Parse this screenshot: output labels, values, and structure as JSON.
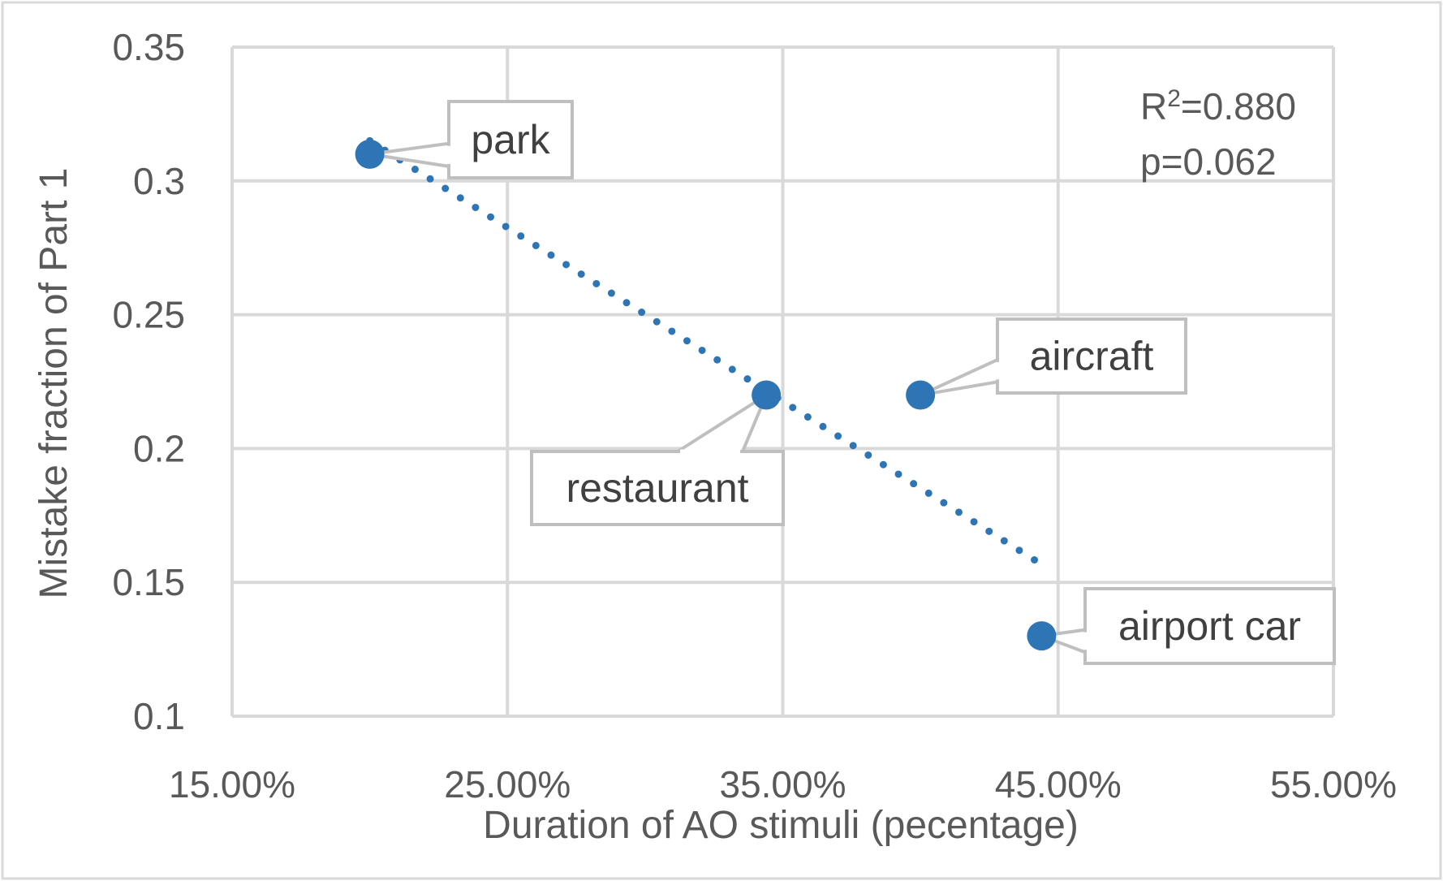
{
  "chart_data": {
    "type": "scatter",
    "title": "",
    "xlabel": "Duration of AO stimuli (pecentage)",
    "ylabel": "Mistake fraction of Part 1",
    "xlim": [
      0.15,
      0.55
    ],
    "ylim": [
      0.1,
      0.35
    ],
    "x_ticks": [
      "15.00%",
      "25.00%",
      "35.00%",
      "45.00%",
      "55.00%"
    ],
    "y_ticks": [
      "0.35",
      "0.3",
      "0.25",
      "0.2",
      "0.15",
      "0.1"
    ],
    "grid": true,
    "points": [
      {
        "label": "park",
        "x": 0.2,
        "y": 0.31
      },
      {
        "label": "restaurant",
        "x": 0.344,
        "y": 0.22
      },
      {
        "label": "aircraft",
        "x": 0.4,
        "y": 0.22
      },
      {
        "label": "airport car",
        "x": 0.444,
        "y": 0.13
      }
    ],
    "trendline": {
      "style": "dotted",
      "x": [
        0.2,
        0.442
      ],
      "y": [
        0.315,
        0.158
      ]
    },
    "annotations": {
      "r2_prefix": "R",
      "r2_sup": "2",
      "r2_value": "=0.880",
      "p": "p=0.062"
    },
    "colors": {
      "marker": "#2e75b6",
      "grid": "#d9d9d9",
      "text": "#595959",
      "callout_border": "#bfbfbf"
    }
  }
}
